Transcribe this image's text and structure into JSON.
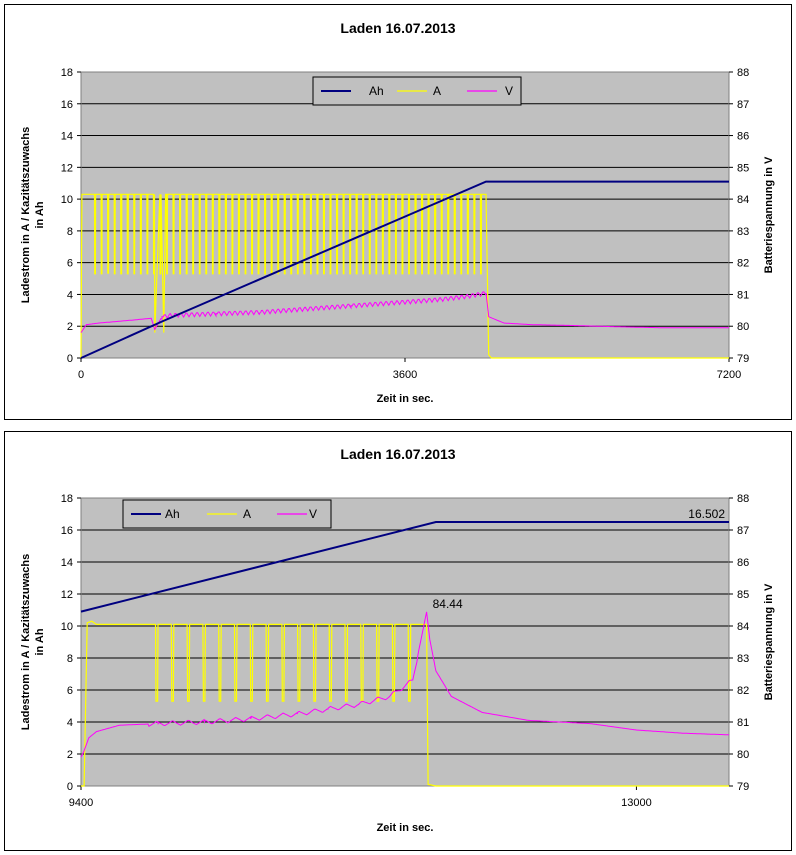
{
  "colors": {
    "plot_bg": "#c0c0c0",
    "grid": "#000000",
    "ah": "#000080",
    "a": "#ffff00",
    "v": "#ff00ff"
  },
  "chart_data": [
    {
      "type": "line",
      "title": "Laden 16.07.2013",
      "xlabel": "Zeit in sec.",
      "ylabel_left": "Ladestrom in A / Kazitätszuwachs in Ah",
      "ylabel_right": "Batteriespannung in V",
      "xlim": [
        0,
        7200
      ],
      "ylim_left": [
        0,
        18
      ],
      "ylim_right": [
        79,
        88
      ],
      "x_ticks": [
        "0",
        "3600",
        "7200"
      ],
      "x_tick_values": [
        0,
        3600,
        7200
      ],
      "y_left_ticks": [
        "0",
        "2",
        "4",
        "6",
        "8",
        "10",
        "12",
        "14",
        "16",
        "18"
      ],
      "y_right_ticks": [
        "79",
        "80",
        "81",
        "82",
        "83",
        "84",
        "85",
        "86",
        "87",
        "88"
      ],
      "grid": true,
      "legend_placement": "top-center",
      "series": [
        {
          "name": "Ah",
          "axis": "left",
          "color_key": "ah",
          "x": [
            0,
            900,
            4500,
            7200
          ],
          "y": [
            0,
            2.3,
            11.1,
            11.1
          ]
        },
        {
          "name": "A",
          "axis": "left",
          "color_key": "a",
          "x": [
            0,
            10,
            60,
            300,
            800,
            820,
            920,
            940,
            4500,
            4530,
            4560,
            7200
          ],
          "y": [
            0,
            10.3,
            10.3,
            10.3,
            10.3,
            1.6,
            1.6,
            10.3,
            10.3,
            0.2,
            0,
            0
          ]
        },
        {
          "name": "V",
          "axis": "right",
          "color_key": "v",
          "x": [
            0,
            60,
            200,
            400,
            600,
            780,
            820,
            900,
            1000,
            1500,
            2000,
            2500,
            3000,
            3500,
            4000,
            4300,
            4500,
            4530,
            4700,
            5000,
            5500,
            6000,
            6500,
            7200
          ],
          "y": [
            79.8,
            80.05,
            80.1,
            80.15,
            80.2,
            80.25,
            79.9,
            80.3,
            80.35,
            80.4,
            80.45,
            80.55,
            80.65,
            80.75,
            80.85,
            80.95,
            81.05,
            80.3,
            80.1,
            80.05,
            80.02,
            79.98,
            79.95,
            79.95
          ]
        }
      ],
      "a_dips": {
        "count": 60,
        "x_start": 120,
        "x_end": 4480,
        "low": 5.3,
        "high": 10.3
      },
      "v_zigzag": {
        "x_start": 900,
        "x_end": 4500,
        "amp": 0.15
      },
      "annotations": []
    },
    {
      "type": "line",
      "title": "Laden 16.07.2013",
      "xlabel": "Zeit in sec.",
      "ylabel_left": "Ladestrom in A / Kazitätszuwachs in Ah",
      "ylabel_right": "Batteriespannung in V",
      "xlim": [
        9400,
        13600
      ],
      "ylim_left": [
        0,
        18
      ],
      "ylim_right": [
        79,
        88
      ],
      "x_ticks": [
        "9400",
        "13000"
      ],
      "x_tick_values": [
        9400,
        13000
      ],
      "y_left_ticks": [
        "0",
        "2",
        "4",
        "6",
        "8",
        "10",
        "12",
        "14",
        "16",
        "18"
      ],
      "y_right_ticks": [
        "79",
        "80",
        "81",
        "82",
        "83",
        "84",
        "85",
        "86",
        "87",
        "88"
      ],
      "grid": true,
      "legend_placement": "top-left",
      "series": [
        {
          "name": "Ah",
          "axis": "left",
          "color_key": "ah",
          "x": [
            9400,
            11700,
            12000,
            13600
          ],
          "y": [
            10.9,
            16.5,
            16.502,
            16.502
          ]
        },
        {
          "name": "A",
          "axis": "left",
          "color_key": "a",
          "x": [
            9400,
            9420,
            9440,
            9470,
            9500,
            11600,
            11640,
            11650,
            11700,
            13600
          ],
          "y": [
            0,
            0,
            10.2,
            10.3,
            10.1,
            10.1,
            10.1,
            0.1,
            0,
            0
          ]
        },
        {
          "name": "V",
          "axis": "right",
          "color_key": "v",
          "x": [
            9400,
            9420,
            9450,
            9500,
            9650,
            9900,
            10200,
            10500,
            10800,
            11000,
            11200,
            11400,
            11550,
            11640,
            11660,
            11700,
            11800,
            12000,
            12300,
            12700,
            13000,
            13300,
            13600
          ],
          "y": [
            79.9,
            80.1,
            80.5,
            80.7,
            80.9,
            80.95,
            81.0,
            81.1,
            81.25,
            81.4,
            81.55,
            81.8,
            82.3,
            84.44,
            83.6,
            82.6,
            81.8,
            81.3,
            81.05,
            80.95,
            80.75,
            80.65,
            80.6
          ]
        }
      ],
      "a_dips": {
        "count": 17,
        "x_start": 9840,
        "x_end": 11580,
        "low": 5.3,
        "high": 10.1
      },
      "v_zigzag": {
        "x_start": 9840,
        "x_end": 11580,
        "amp": 0.15
      },
      "annotations": [
        {
          "id": "ah_end",
          "text": "16.502",
          "x": 13600,
          "y": 16.502,
          "axis": "left"
        },
        {
          "id": "v_peak",
          "text": "84.44",
          "x": 11640,
          "y": 84.44,
          "axis": "right"
        }
      ]
    }
  ]
}
